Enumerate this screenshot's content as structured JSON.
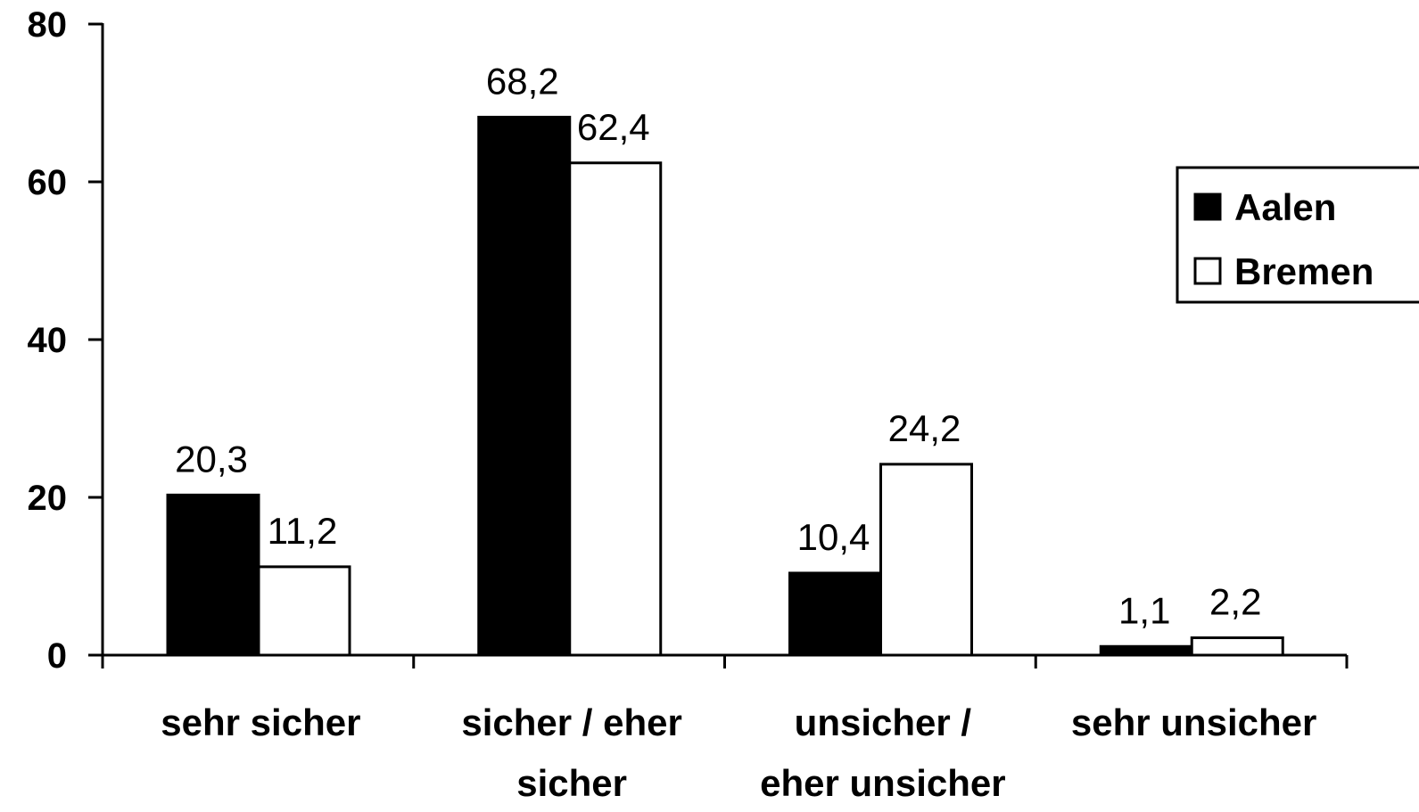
{
  "chart_data": {
    "type": "bar",
    "categories": [
      [
        "sehr sicher"
      ],
      [
        "sicher / eher",
        "sicher"
      ],
      [
        "unsicher /",
        "eher unsicher"
      ],
      [
        "sehr unsicher"
      ]
    ],
    "series": [
      {
        "name": "Aalen",
        "values": [
          20.3,
          68.2,
          10.4,
          1.1
        ],
        "labels": [
          "20,3",
          "68,2",
          "10,4",
          "1,1"
        ],
        "color": "#000000"
      },
      {
        "name": "Bremen",
        "values": [
          11.2,
          62.4,
          24.2,
          2.2
        ],
        "labels": [
          "11,2",
          "62,4",
          "24,2",
          "2,2"
        ],
        "color": "#ffffff"
      }
    ],
    "yticks": [
      {
        "value": 0,
        "label": "0"
      },
      {
        "value": 20,
        "label": "20"
      },
      {
        "value": 40,
        "label": "40"
      },
      {
        "value": 60,
        "label": "60"
      },
      {
        "value": 80,
        "label": "80"
      }
    ],
    "ylim": [
      0,
      80
    ],
    "title": "",
    "xlabel": "",
    "ylabel": "",
    "grid": false,
    "legend_position": "right"
  }
}
